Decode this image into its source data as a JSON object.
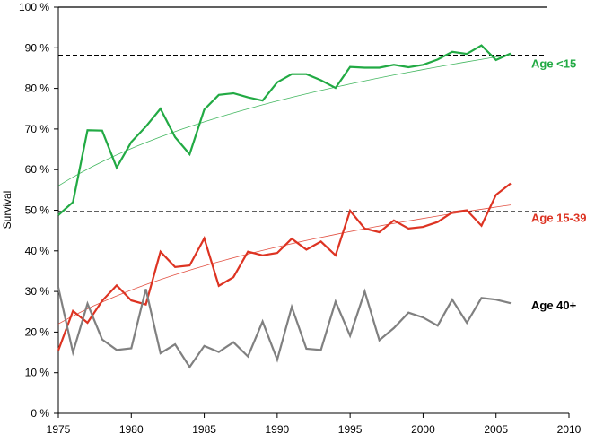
{
  "chart_data": {
    "type": "line",
    "title": "",
    "xlabel": "",
    "ylabel": "Survival",
    "xlim": [
      1975,
      2010
    ],
    "ylim": [
      0,
      100
    ],
    "x_ticks": [
      1975,
      1980,
      1985,
      1990,
      1995,
      2000,
      2005,
      2010
    ],
    "y_ticks": [
      0,
      10,
      20,
      30,
      40,
      50,
      60,
      70,
      80,
      90,
      100
    ],
    "y_tick_labels": [
      "0 %",
      "10 %",
      "20 %",
      "30 %",
      "40 %",
      "50 %",
      "60 %",
      "70 %",
      "80 %",
      "90 %",
      "100 %"
    ],
    "grid": false,
    "x": [
      1975,
      1976,
      1977,
      1978,
      1979,
      1980,
      1981,
      1982,
      1983,
      1984,
      1985,
      1986,
      1987,
      1988,
      1989,
      1990,
      1991,
      1992,
      1993,
      1994,
      1995,
      1996,
      1997,
      1998,
      1999,
      2000,
      2001,
      2002,
      2003,
      2004,
      2005,
      2006
    ],
    "series": [
      {
        "name": "Age <15",
        "label_text": "Age  <15",
        "color": "#22aa44",
        "values": [
          48.8,
          52.0,
          69.7,
          69.6,
          60.5,
          66.8,
          70.6,
          75.0,
          68.0,
          63.8,
          74.8,
          78.4,
          78.8,
          77.8,
          77.0,
          81.5,
          83.5,
          83.5,
          82.0,
          80.1,
          85.3,
          85.1,
          85.1,
          85.8,
          85.2,
          85.8,
          87.1,
          89.0,
          88.5,
          90.6,
          87.0,
          88.6
        ],
        "trend": [
          56.0,
          88.3
        ],
        "reference_line": 88.2
      },
      {
        "name": "Age 15-39",
        "label_text": "Age  15-39",
        "color": "#dd3322",
        "values": [
          15.5,
          25.2,
          22.3,
          27.7,
          31.5,
          27.8,
          26.8,
          39.8,
          36.0,
          36.4,
          43.1,
          31.4,
          33.5,
          39.8,
          38.9,
          39.5,
          43.0,
          40.3,
          42.3,
          38.9,
          49.9,
          45.5,
          44.6,
          47.5,
          45.5,
          45.9,
          47.1,
          49.5,
          50.0,
          46.2,
          53.8,
          56.6
        ],
        "trend": [
          22.0,
          51.3
        ],
        "reference_line": 49.7
      },
      {
        "name": "Age 40+",
        "label_text": "Age  40+",
        "color": "#808080",
        "values": [
          31.0,
          15.0,
          27.0,
          18.2,
          15.6,
          16.0,
          30.6,
          14.8,
          17.0,
          11.4,
          16.6,
          15.1,
          17.5,
          14.0,
          22.6,
          13.2,
          26.2,
          15.9,
          15.6,
          27.5,
          19.1,
          30.0,
          18.0,
          21.0,
          24.8,
          23.6,
          21.6,
          28.0,
          22.3,
          28.4,
          28.0,
          27.1
        ]
      }
    ]
  }
}
